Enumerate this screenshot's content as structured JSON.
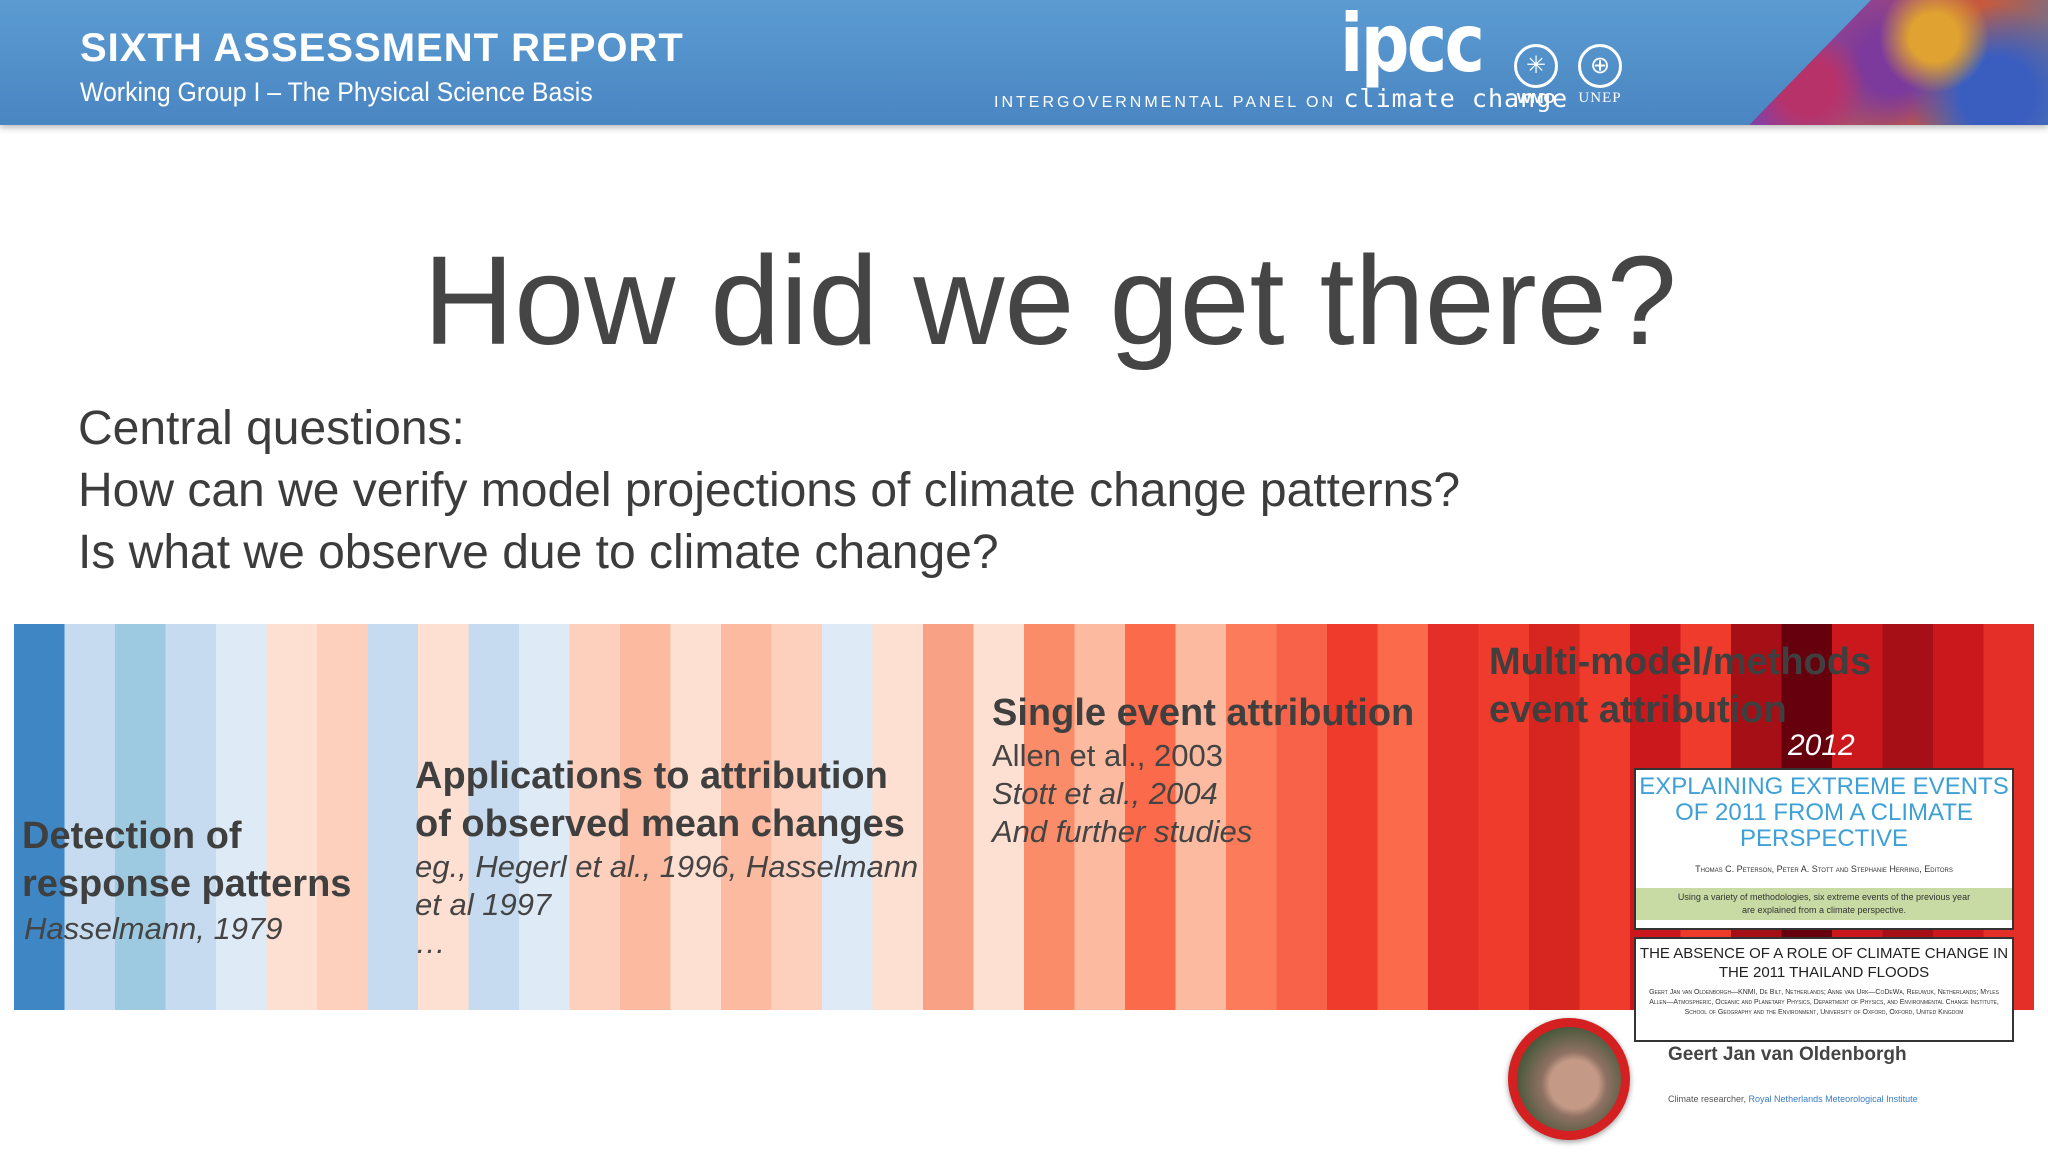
{
  "header": {
    "title": "SIXTH ASSESSMENT REPORT",
    "subtitle": "Working Group I – The Physical Science Basis",
    "ipcc_logo": "ipcc",
    "ipcc_tagline_prefix": "INTERGOVERNMENTAL PANEL ON",
    "ipcc_tagline_cc": "climate change",
    "org1": "WMO",
    "org2": "UNEP"
  },
  "slide": {
    "title": "How did we get there?",
    "questions": [
      "Central questions:",
      "How can we verify model projections of climate change patterns?",
      "Is what we observe due to climate change?"
    ]
  },
  "timeline": {
    "detection": {
      "heading": [
        "Detection of",
        "response patterns"
      ],
      "citation": "Hasselmann, 1979"
    },
    "applications": {
      "heading": [
        "Applications to attribution",
        "of observed mean changes"
      ],
      "citation": [
        "eg., Hegerl et al., 1996, Hasselmann",
        "et al 1997",
        "…"
      ]
    },
    "single_event": {
      "heading": "Single event attribution",
      "citations": [
        "Allen et al., 2003",
        "Stott et al., 2004",
        "And further studies"
      ]
    },
    "multi_model": {
      "heading": [
        "Multi-model/methods",
        "event attribution"
      ],
      "year": "2012"
    }
  },
  "papers": {
    "explaining": {
      "title": [
        "EXPLAINING EXTREME EVENTS",
        "OF 2011 FROM A CLIMATE",
        "PERSPECTIVE"
      ],
      "authors": "Thomas C. Peterson, Peter A. Stott and Stephanie Herring, Editors",
      "band": [
        "Using a variety of methodologies, six extreme events of the previous year",
        "are explained from a climate perspective."
      ]
    },
    "absence": {
      "title": [
        "THE ABSENCE OF A ROLE OF CLIMATE CHANGE IN",
        "THE 2011 THAILAND FLOODS"
      ],
      "authors": "Geert Jan van Oldenborgh—KNMI, De Bilt, Netherlands; Anne van Urk—CoDeWa, Reeuwijk, Netherlands; Myles Allen—Atmospheric, Oceanic and Planetary Physics, Department of Physics, and Environmental Change Institute, School of Geography and the Environment, University of Oxford, Oxford, United Kingdom"
    }
  },
  "presenter": {
    "name": "Geert Jan van Oldenborgh",
    "role_prefix": "Climate researcher,",
    "institute": "Royal Netherlands Meteorological Institute"
  },
  "stripe_colors": [
    "#3e86c4",
    "#c6dbef",
    "#9ecae1",
    "#c6dbef",
    "#deebf7",
    "#fee0d2",
    "#fdd0bd",
    "#c6dbef",
    "#fee0d2",
    "#c6dbef",
    "#deebf7",
    "#fdd0bd",
    "#fcbba1",
    "#fee0d2",
    "#fcbba1",
    "#fdd0bd",
    "#deebf7",
    "#fee0d2",
    "#f9a184",
    "#fee0d2",
    "#fb8c69",
    "#fcbba1",
    "#fb6a4a",
    "#fcbba1",
    "#fb7b5b",
    "#f76248",
    "#ef3b2c",
    "#fb6a4a",
    "#e32f27",
    "#ef3b2c",
    "#d7261f",
    "#ef3b2c",
    "#cb181d",
    "#ef3b2c",
    "#a50f15",
    "#67000d",
    "#cb181d",
    "#a50f15",
    "#cb181d",
    "#e32f27"
  ]
}
